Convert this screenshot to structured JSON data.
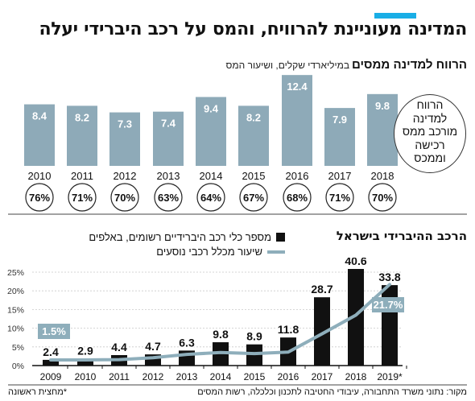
{
  "title": "המדינה מעוניינת להרוויח, והמס על רכב היברידי יעלה",
  "revenue_title": "הרווח למדינה ממסים",
  "revenue_subtitle": "במיליארדי שקלים, ושיעור המס",
  "callout": "הרווח\nלמדינה\nמורכב ממס\nרכישה\nוממכס",
  "hybrid_title": "הרכב ההיברידי בישראל",
  "legend_bars": "מספר כלי רכב היברידיים רשומים, באלפים",
  "legend_line": "שיעור מכלל רכבי נוסעים",
  "footnote": "*מחצית ראשונה",
  "source": "מקור: נתוני משרד התחבורה, עיבודי החטיבה לתכנון וכלכלה, רשות המסים",
  "colors": {
    "accent": "#19aee6",
    "revenue_bar": "#8eaab8",
    "hybrid_bar": "#111111",
    "share_line": "#8eaebb",
    "label_box": "#8eaebb"
  },
  "chart_data": [
    {
      "type": "bar",
      "categories": [
        "2010",
        "2011",
        "2012",
        "2013",
        "2014",
        "2015",
        "2016",
        "2017",
        "2018"
      ],
      "values": [
        8.4,
        8.2,
        7.3,
        7.4,
        9.4,
        8.2,
        12.4,
        7.9,
        9.8
      ],
      "value_labels": [
        "8.4",
        "8.2",
        "7.3",
        "7.4",
        "9.4",
        "8.2",
        "12.4",
        "7.9",
        "9.8"
      ],
      "tax_rate_labels": [
        "76%",
        "71%",
        "70%",
        "63%",
        "64%",
        "67%",
        "68%",
        "71%",
        "70%"
      ],
      "title": "הרווח למדינה ממסים",
      "ylim": [
        0,
        13
      ]
    },
    {
      "type": "bar",
      "categories": [
        "2009",
        "2010",
        "2011",
        "2012",
        "2013",
        "2014",
        "2015",
        "2016",
        "2017",
        "2018",
        "2019*"
      ],
      "series": [
        {
          "name": "מספר כלי רכב היברידיים רשומים, באלפים",
          "values": [
            2.4,
            2.9,
            4.4,
            4.7,
            6.3,
            9.8,
            8.9,
            11.8,
            28.7,
            40.6,
            33.8
          ],
          "labels": [
            "2.4",
            "2.9",
            "4.4",
            "4.7",
            "6.3",
            "9.8",
            "8.9",
            "11.8",
            "28.7",
            "40.6",
            "33.8"
          ]
        },
        {
          "name": "שיעור מכלל רכבי נוסעים",
          "type": "line",
          "values": [
            1.5,
            1.5,
            1.6,
            2.1,
            3.0,
            3.5,
            3.2,
            3.6,
            8.5,
            13.5,
            21.7
          ],
          "annotated": [
            "1.5%",
            null,
            null,
            null,
            null,
            null,
            null,
            null,
            null,
            null,
            "21.7%"
          ]
        }
      ],
      "y_ticks": [
        "0%",
        "5%",
        "10%",
        "15%",
        "20%",
        "25%"
      ],
      "ylim_percent": [
        0,
        27
      ],
      "ylim_bars": [
        0,
        41
      ],
      "title": "הרכב ההיברידי בישראל"
    }
  ]
}
